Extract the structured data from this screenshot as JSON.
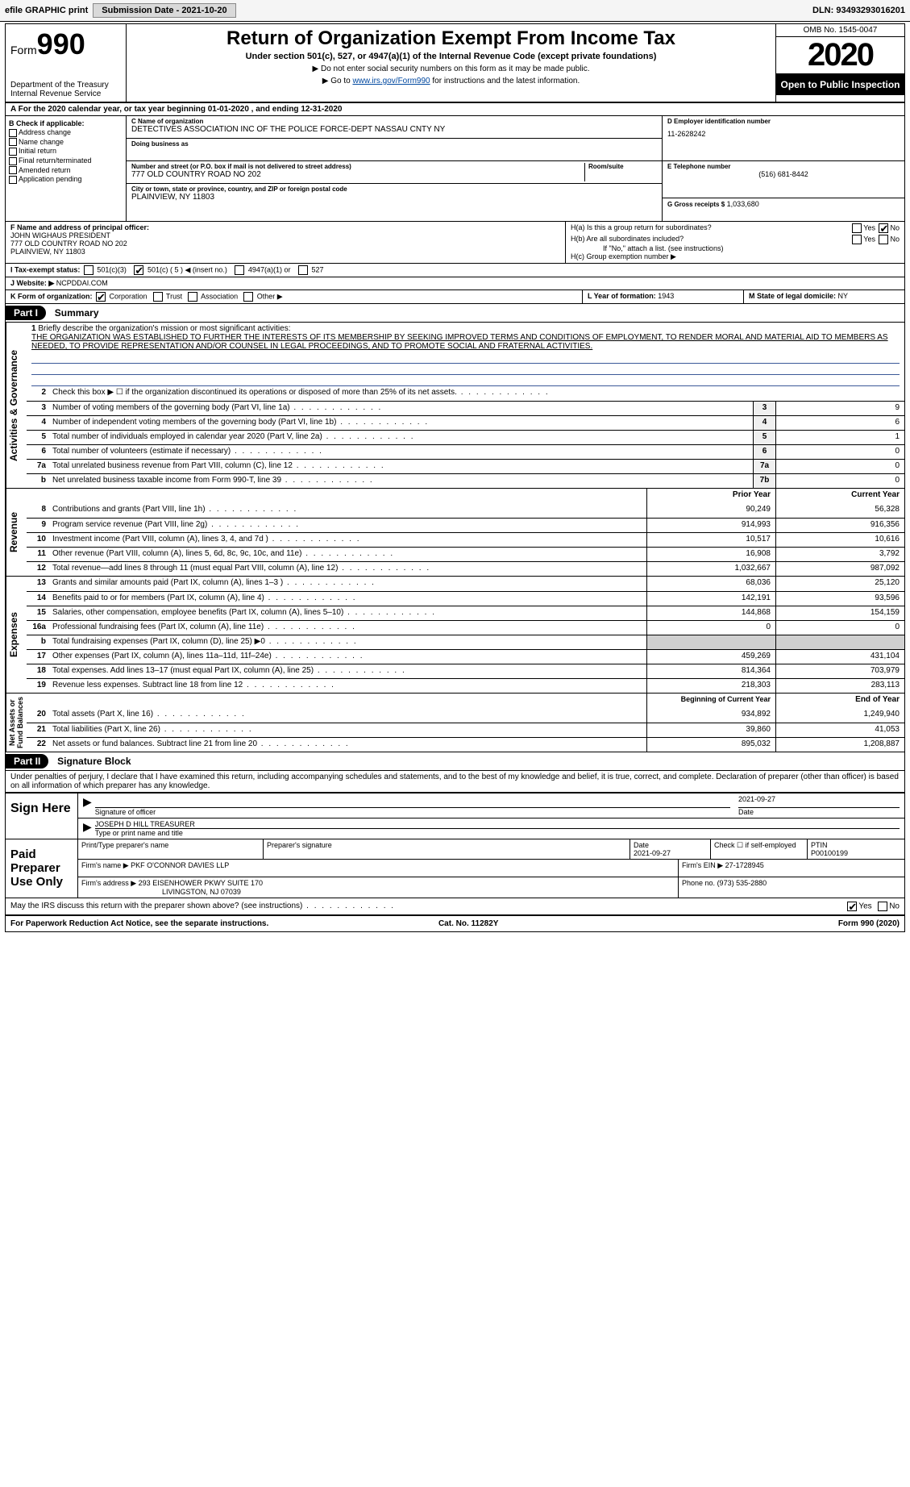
{
  "topbar": {
    "efile": "efile GRAPHIC print",
    "submission_label": "Submission Date - 2021-10-20",
    "dln_label": "DLN: 93493293016201"
  },
  "header": {
    "form_word": "Form",
    "form_num": "990",
    "dept": "Department of the Treasury\nInternal Revenue Service",
    "title": "Return of Organization Exempt From Income Tax",
    "subtitle": "Under section 501(c), 527, or 4947(a)(1) of the Internal Revenue Code (except private foundations)",
    "note1": "▶ Do not enter social security numbers on this form as it may be made public.",
    "note2_pre": "▶ Go to ",
    "note2_link": "www.irs.gov/Form990",
    "note2_post": " for instructions and the latest information.",
    "omb": "OMB No. 1545-0047",
    "year": "2020",
    "open": "Open to Public Inspection"
  },
  "period": "A For the 2020 calendar year, or tax year beginning 01-01-2020   , and ending 12-31-2020",
  "box_b": {
    "hdr": "B Check if applicable:",
    "items": [
      "Address change",
      "Name change",
      "Initial return",
      "Final return/terminated",
      "Amended return",
      "Application pending"
    ]
  },
  "box_c": {
    "name_lbl": "C Name of organization",
    "name": "DETECTIVES ASSOCIATION INC OF THE POLICE FORCE-DEPT NASSAU CNTY NY",
    "dba_lbl": "Doing business as",
    "dba": "",
    "street_lbl": "Number and street (or P.O. box if mail is not delivered to street address)",
    "room_lbl": "Room/suite",
    "street": "777 OLD COUNTRY ROAD NO 202",
    "city_lbl": "City or town, state or province, country, and ZIP or foreign postal code",
    "city": "PLAINVIEW, NY  11803"
  },
  "box_d": {
    "lbl": "D Employer identification number",
    "val": "11-2628242"
  },
  "box_e": {
    "lbl": "E Telephone number",
    "val": "(516) 681-8442"
  },
  "box_g": {
    "lbl": "G Gross receipts $",
    "val": "1,033,680"
  },
  "box_f": {
    "lbl": "F Name and address of principal officer:",
    "name": "JOHN WIGHAUS PRESIDENT",
    "addr1": "777 OLD COUNTRY ROAD NO 202",
    "addr2": "PLAINVIEW, NY  11803"
  },
  "box_h": {
    "a": "H(a)  Is this a group return for subordinates?",
    "b": "H(b)  Are all subordinates included?",
    "b_note": "If \"No,\" attach a list. (see instructions)",
    "c": "H(c)  Group exemption number ▶",
    "yes": "Yes",
    "no": "No"
  },
  "row_i": {
    "lbl": "I   Tax-exempt status:",
    "c3": "501(c)(3)",
    "c": "501(c) ( 5 ) ◀ (insert no.)",
    "a1": "4947(a)(1) or",
    "s527": "527"
  },
  "row_j": {
    "lbl": "J   Website: ▶",
    "val": "NCPDDAI.COM"
  },
  "row_k": {
    "lbl": "K Form of organization:",
    "corp": "Corporation",
    "trust": "Trust",
    "assoc": "Association",
    "other": "Other ▶"
  },
  "row_l": {
    "lbl": "L Year of formation:",
    "val": "1943"
  },
  "row_m": {
    "lbl": "M State of legal domicile:",
    "val": "NY"
  },
  "part1": {
    "hdr": "Part I",
    "title": "Summary"
  },
  "mission": {
    "num": "1",
    "lbl": "Briefly describe the organization's mission or most significant activities:",
    "txt": "THE ORGANIZATION WAS ESTABLISHED TO FURTHER THE INTERESTS OF ITS MEMBERSHIP BY SEEKING IMPROVED TERMS AND CONDITIONS OF EMPLOYMENT, TO RENDER MORAL AND MATERIAL AID TO MEMBERS AS NEEDED, TO PROVIDE REPRESENTATION AND/OR COUNSEL IN LEGAL PROCEEDINGS, AND TO PROMOTE SOCIAL AND FRATERNAL ACTIVITIES."
  },
  "gov_lines": [
    {
      "n": "2",
      "d": "Check this box ▶ ☐ if the organization discontinued its operations or disposed of more than 25% of its net assets.",
      "box": "",
      "v": ""
    },
    {
      "n": "3",
      "d": "Number of voting members of the governing body (Part VI, line 1a)",
      "box": "3",
      "v": "9"
    },
    {
      "n": "4",
      "d": "Number of independent voting members of the governing body (Part VI, line 1b)",
      "box": "4",
      "v": "6"
    },
    {
      "n": "5",
      "d": "Total number of individuals employed in calendar year 2020 (Part V, line 2a)",
      "box": "5",
      "v": "1"
    },
    {
      "n": "6",
      "d": "Total number of volunteers (estimate if necessary)",
      "box": "6",
      "v": "0"
    },
    {
      "n": "7a",
      "d": "Total unrelated business revenue from Part VIII, column (C), line 12",
      "box": "7a",
      "v": "0"
    },
    {
      "n": "b",
      "d": "Net unrelated business taxable income from Form 990-T, line 39",
      "box": "7b",
      "v": "0"
    }
  ],
  "rev_hdr": {
    "prior": "Prior Year",
    "current": "Current Year"
  },
  "rev_lines": [
    {
      "n": "8",
      "d": "Contributions and grants (Part VIII, line 1h)",
      "p": "90,249",
      "c": "56,328"
    },
    {
      "n": "9",
      "d": "Program service revenue (Part VIII, line 2g)",
      "p": "914,993",
      "c": "916,356"
    },
    {
      "n": "10",
      "d": "Investment income (Part VIII, column (A), lines 3, 4, and 7d )",
      "p": "10,517",
      "c": "10,616"
    },
    {
      "n": "11",
      "d": "Other revenue (Part VIII, column (A), lines 5, 6d, 8c, 9c, 10c, and 11e)",
      "p": "16,908",
      "c": "3,792"
    },
    {
      "n": "12",
      "d": "Total revenue—add lines 8 through 11 (must equal Part VIII, column (A), line 12)",
      "p": "1,032,667",
      "c": "987,092"
    }
  ],
  "exp_lines": [
    {
      "n": "13",
      "d": "Grants and similar amounts paid (Part IX, column (A), lines 1–3 )",
      "p": "68,036",
      "c": "25,120"
    },
    {
      "n": "14",
      "d": "Benefits paid to or for members (Part IX, column (A), line 4)",
      "p": "142,191",
      "c": "93,596"
    },
    {
      "n": "15",
      "d": "Salaries, other compensation, employee benefits (Part IX, column (A), lines 5–10)",
      "p": "144,868",
      "c": "154,159"
    },
    {
      "n": "16a",
      "d": "Professional fundraising fees (Part IX, column (A), line 11e)",
      "p": "0",
      "c": "0"
    },
    {
      "n": "b",
      "d": "Total fundraising expenses (Part IX, column (D), line 25) ▶0",
      "p": "",
      "c": "",
      "shade": true
    },
    {
      "n": "17",
      "d": "Other expenses (Part IX, column (A), lines 11a–11d, 11f–24e)",
      "p": "459,269",
      "c": "431,104"
    },
    {
      "n": "18",
      "d": "Total expenses. Add lines 13–17 (must equal Part IX, column (A), line 25)",
      "p": "814,364",
      "c": "703,979"
    },
    {
      "n": "19",
      "d": "Revenue less expenses. Subtract line 18 from line 12",
      "p": "218,303",
      "c": "283,113"
    }
  ],
  "na_hdr": {
    "prior": "Beginning of Current Year",
    "current": "End of Year"
  },
  "na_lines": [
    {
      "n": "20",
      "d": "Total assets (Part X, line 16)",
      "p": "934,892",
      "c": "1,249,940"
    },
    {
      "n": "21",
      "d": "Total liabilities (Part X, line 26)",
      "p": "39,860",
      "c": "41,053"
    },
    {
      "n": "22",
      "d": "Net assets or fund balances. Subtract line 21 from line 20",
      "p": "895,032",
      "c": "1,208,887"
    }
  ],
  "vtabs": {
    "gov": "Activities & Governance",
    "rev": "Revenue",
    "exp": "Expenses",
    "na": "Net Assets or\nFund Balances"
  },
  "part2": {
    "hdr": "Part II",
    "title": "Signature Block"
  },
  "sig_decl": "Under penalties of perjury, I declare that I have examined this return, including accompanying schedules and statements, and to the best of my knowledge and belief, it is true, correct, and complete. Declaration of preparer (other than officer) is based on all information of which preparer has any knowledge.",
  "sign_here": {
    "lbl": "Sign Here",
    "sig_of_officer": "Signature of officer",
    "date1": "2021-09-27",
    "date_lbl": "Date",
    "name_title": "JOSEPH D HILL  TREASURER",
    "name_title_lbl": "Type or print name and title"
  },
  "paid": {
    "lbl": "Paid Preparer Use Only",
    "r1": {
      "c1": "Print/Type preparer's name",
      "c2": "Preparer's signature",
      "c3": "Date",
      "c3v": "2021-09-27",
      "c4": "Check ☐ if self-employed",
      "c5": "PTIN",
      "c5v": "P00100199"
    },
    "r2": {
      "lbl": "Firm's name    ▶",
      "val": "PKF O'CONNOR DAVIES LLP",
      "ein_lbl": "Firm's EIN ▶",
      "ein": "27-1728945"
    },
    "r3": {
      "lbl": "Firm's address ▶",
      "val1": "293 EISENHOWER PKWY SUITE 170",
      "val2": "LIVINGSTON, NJ  07039",
      "ph_lbl": "Phone no.",
      "ph": "(973) 535-2880"
    }
  },
  "discuss": {
    "q": "May the IRS discuss this return with the preparer shown above? (see instructions)",
    "yes": "Yes",
    "no": "No"
  },
  "footer": {
    "l": "For Paperwork Reduction Act Notice, see the separate instructions.",
    "m": "Cat. No. 11282Y",
    "r": "Form 990 (2020)"
  }
}
